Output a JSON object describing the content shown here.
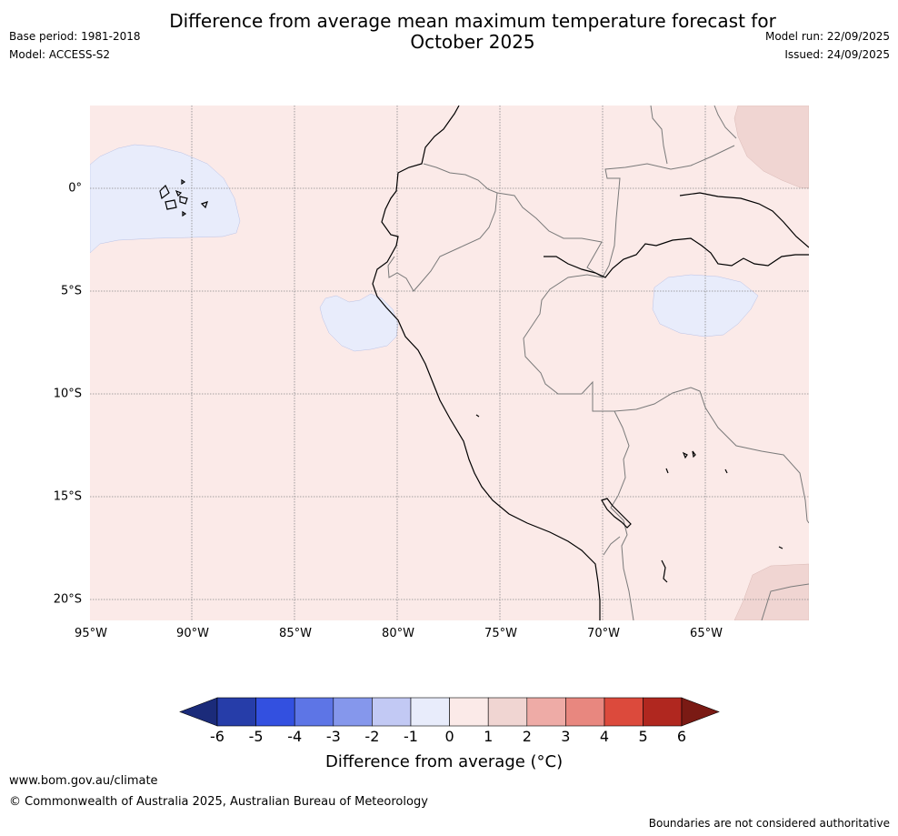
{
  "title": {
    "line1": "Difference from average mean maximum temperature forecast for",
    "line2": "October 2025"
  },
  "meta": {
    "base_period": "Base period: 1981-2018",
    "model": "Model: ACCESS-S2",
    "model_run": "Model run: 22/09/2025",
    "issued": "Issued: 24/09/2025"
  },
  "map": {
    "lat_labels": [
      "0°",
      "5°S",
      "10°S",
      "15°S",
      "20°S"
    ],
    "lon_labels": [
      "95°W",
      "90°W",
      "85°W",
      "80°W",
      "75°W",
      "70°W",
      "65°W"
    ],
    "colors": {
      "anomaly_0_to_1": "#fbeae8",
      "anomaly_1_to_2": "#f0d5d2",
      "anomaly_neg1_to_0": "#e8ecfb"
    }
  },
  "colorbar": {
    "ticks": [
      "-6",
      "-5",
      "-4",
      "-3",
      "-2",
      "-1",
      "0",
      "1",
      "2",
      "3",
      "4",
      "5",
      "6"
    ],
    "colors": [
      "#1b2b7a",
      "#263da9",
      "#3350e0",
      "#5d75e6",
      "#8597ec",
      "#c2c9f4",
      "#e8ecfb",
      "#fbeae8",
      "#f0d5d2",
      "#eeaba6",
      "#e8877f",
      "#dc4a3c",
      "#b0271f",
      "#7a1a14"
    ],
    "label": "Difference from average (°C)"
  },
  "footer": {
    "url": "www.bom.gov.au/climate",
    "copyright": "© Commonwealth of Australia 2025, Australian Bureau of Meteorology",
    "disclaimer": "Boundaries are not considered authoritative"
  }
}
